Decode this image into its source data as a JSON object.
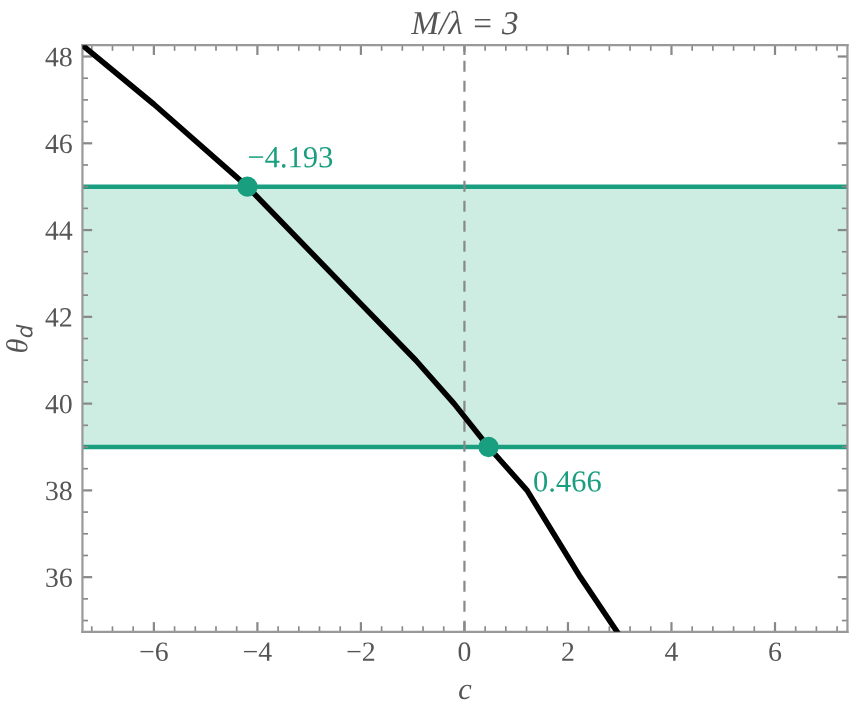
{
  "chart_data": {
    "type": "line",
    "title": "M/λ = 3",
    "xlabel": "c",
    "ylabel": "θ$_{d}$",
    "series": [
      {
        "color": "#000000",
        "marker": "none",
        "x": [
          -7.38,
          -6,
          -4.193,
          -2,
          -0.94,
          -0.2,
          0.466,
          1.21,
          2.24,
          2.95
        ],
        "values": [
          48.26,
          46.9,
          45,
          42.3,
          41,
          40,
          39,
          38,
          36,
          34.74
        ]
      },
      {
        "type": "scatter",
        "marker": "circle",
        "color": "#1a9e80",
        "x": [
          -4.193,
          0.466
        ],
        "values": [
          45,
          39
        ]
      }
    ],
    "annotations": [
      {
        "text": "−4.193",
        "x": -4.193,
        "y": 45
      },
      {
        "text": "0.466",
        "x": 0.466,
        "y": 39
      }
    ],
    "bands": [
      {
        "axis": "y",
        "from": 39,
        "to": 45,
        "color": "#cdede3"
      }
    ],
    "ref_lines": [
      {
        "axis": "y",
        "value": 45,
        "color": "#1a9e80",
        "line_style": "solid"
      },
      {
        "axis": "y",
        "value": 39,
        "color": "#1a9e80",
        "line_style": "solid"
      },
      {
        "axis": "x",
        "value": 0,
        "color": "#888888",
        "line_style": "dashed"
      }
    ],
    "xlim": [
      -7.38,
      7.4
    ],
    "ylim": [
      34.74,
      48.26
    ],
    "xticks": [
      {
        "value": -6,
        "label": "−6"
      },
      {
        "value": -4,
        "label": "−4"
      },
      {
        "value": -2,
        "label": "−2"
      },
      0,
      2,
      4,
      6
    ],
    "yticks": [
      36,
      38,
      40,
      42,
      44,
      46,
      48
    ],
    "grid": false,
    "legend": false,
    "line_style": "solid"
  }
}
